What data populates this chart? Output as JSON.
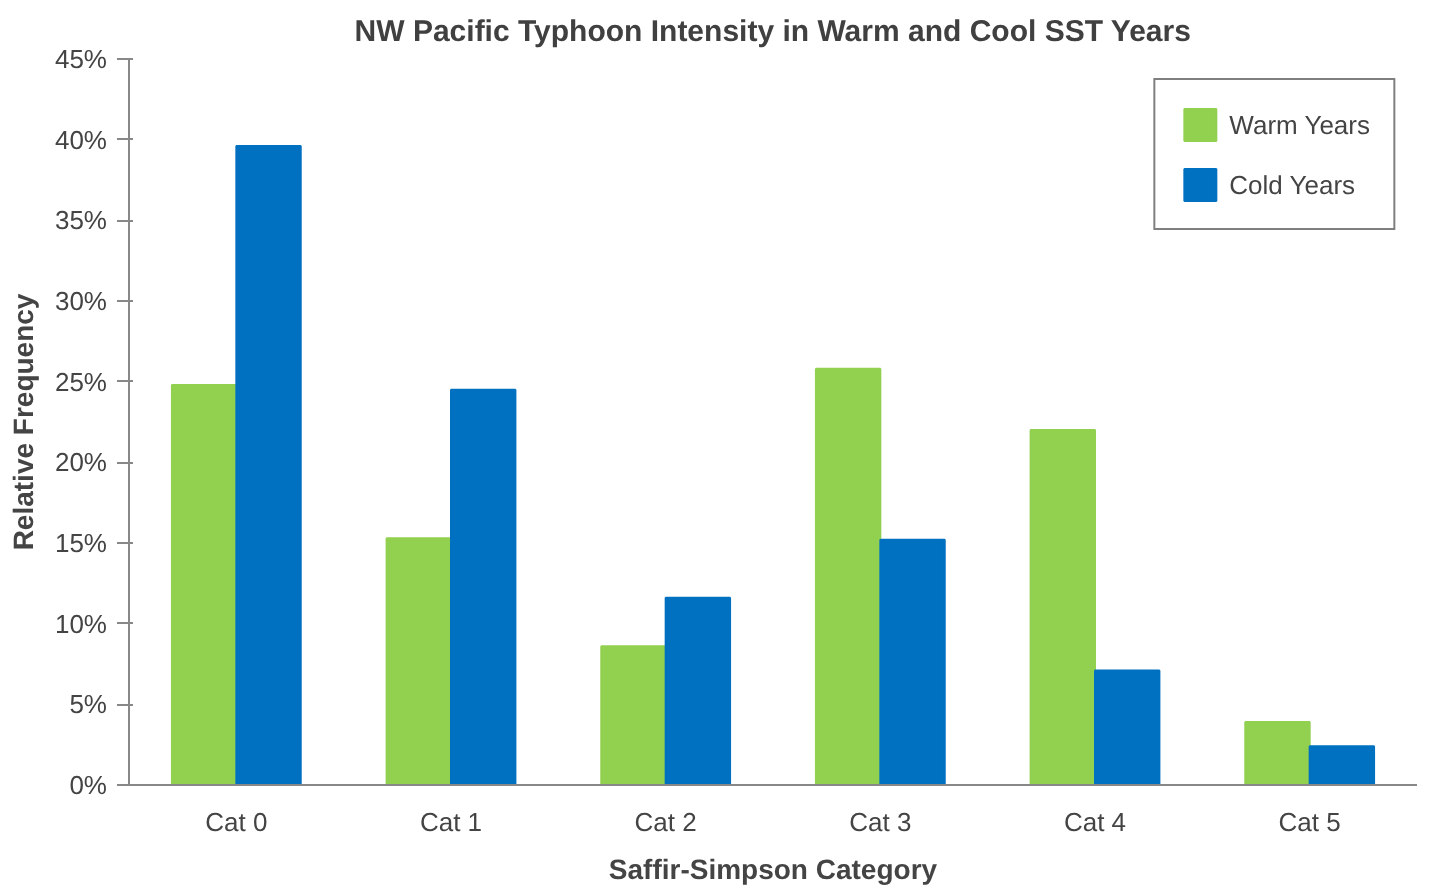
{
  "chart_data": {
    "type": "bar",
    "title": "NW Pacific Typhoon Intensity in Warm and Cool SST Years",
    "xlabel": "Saffir-Simpson Category",
    "ylabel": "Relative Frequency",
    "categories": [
      "Cat 0",
      "Cat 1",
      "Cat 2",
      "Cat 3",
      "Cat 4",
      "Cat 5"
    ],
    "series": [
      {
        "name": "Warm Years",
        "color": "#92d050",
        "values": [
          24.8,
          15.3,
          8.6,
          25.8,
          22.0,
          3.9
        ]
      },
      {
        "name": "Cold Years",
        "color": "#0070c0",
        "values": [
          39.6,
          24.5,
          11.6,
          15.2,
          7.1,
          2.4
        ]
      }
    ],
    "ylim": [
      0,
      45
    ],
    "yticks": [
      {
        "value": 0,
        "label": "0%"
      },
      {
        "value": 5,
        "label": "5%"
      },
      {
        "value": 10,
        "label": "10%"
      },
      {
        "value": 15,
        "label": "15%"
      },
      {
        "value": 20,
        "label": "20%"
      },
      {
        "value": 25,
        "label": "25%"
      },
      {
        "value": 30,
        "label": "30%"
      },
      {
        "value": 35,
        "label": "35%"
      },
      {
        "value": 40,
        "label": "40%"
      },
      {
        "value": 45,
        "label": "45%"
      }
    ],
    "legend": "top right",
    "grid": false
  }
}
